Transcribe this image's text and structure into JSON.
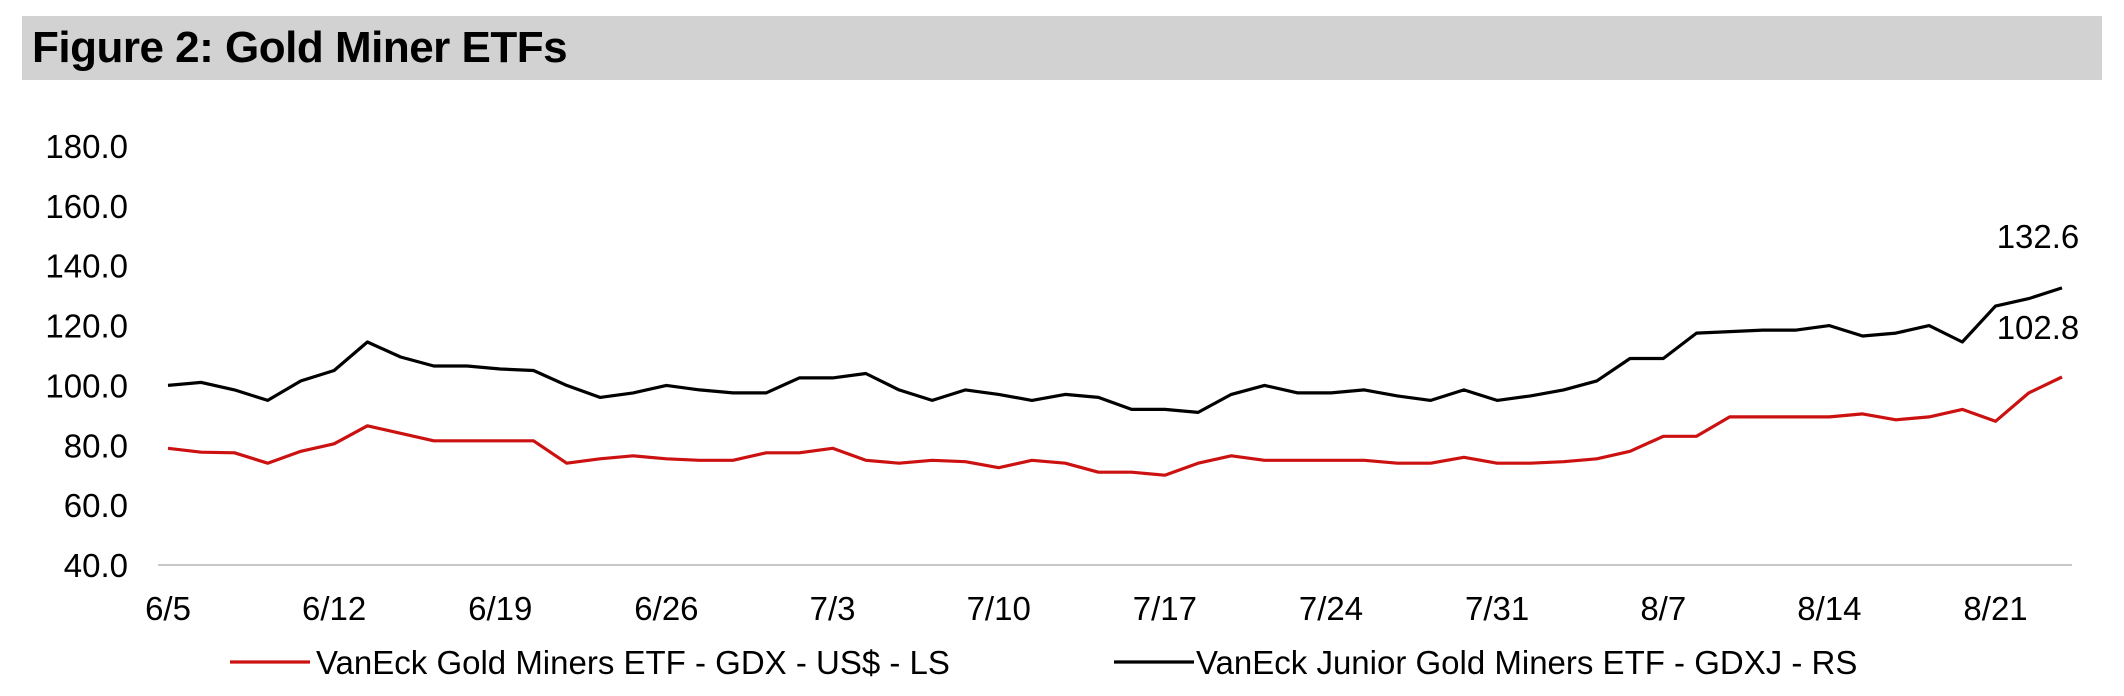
{
  "figure": {
    "title": "Figure 2: Gold Miner ETFs"
  },
  "chart_data": {
    "type": "line",
    "y_ticks": [
      "180.0",
      "160.0",
      "140.0",
      "120.0",
      "100.0",
      "80.0",
      "60.0",
      "40.0"
    ],
    "y_tick_values": [
      180,
      160,
      140,
      120,
      100,
      80,
      60,
      40
    ],
    "ylim": [
      40,
      180
    ],
    "x_tick_labels": [
      "6/5",
      "6/12",
      "6/19",
      "6/26",
      "7/3",
      "7/10",
      "7/17",
      "7/24",
      "7/31",
      "8/7",
      "8/14",
      "8/21"
    ],
    "x_tick_index": [
      0,
      5,
      10,
      15,
      20,
      25,
      30,
      35,
      40,
      45,
      50,
      55
    ],
    "grid": false,
    "legend_position": "bottom",
    "series": [
      {
        "name": "VanEck Gold Miners ETF   - GDX  - US$ - LS",
        "color": "#cc1111",
        "end_label": "102.8",
        "values": [
          79,
          77.7,
          77.5,
          74,
          78,
          80.5,
          86.5,
          84,
          81.5,
          81.5,
          81.5,
          81.5,
          74,
          75.5,
          76.5,
          75.5,
          75,
          75,
          77.5,
          77.5,
          79,
          75,
          74,
          75,
          74.5,
          72.5,
          75,
          74,
          71,
          71,
          70,
          74,
          76.5,
          75,
          75,
          75,
          75,
          74,
          74,
          76,
          74,
          74,
          74.5,
          75.5,
          78,
          83,
          83,
          89.5,
          89.5,
          89.5,
          89.5,
          90.5,
          88.5,
          89.5,
          92,
          88,
          97.5,
          102.8
        ]
      },
      {
        "name": "VanEck Junior Gold Miners ETF - GDXJ - RS",
        "color": "#000000",
        "end_label": "132.6",
        "values": [
          100,
          101,
          98.5,
          95,
          101.5,
          105,
          114.5,
          109.5,
          106.5,
          106.5,
          105.5,
          105,
          100,
          96,
          97.5,
          100,
          98.5,
          97.5,
          97.5,
          102.5,
          102.5,
          104,
          98.5,
          95,
          98.5,
          97,
          95,
          97,
          96,
          92,
          92,
          91,
          97,
          100,
          97.5,
          97.5,
          98.5,
          96.5,
          95,
          98.5,
          95,
          96.5,
          98.5,
          101.5,
          109,
          109,
          117.5,
          118,
          118.5,
          118.5,
          120,
          116.5,
          117.5,
          120,
          114.5,
          126.5,
          129,
          132.6
        ]
      }
    ]
  },
  "legend": {
    "items": [
      {
        "label": "VanEck Gold Miners ETF   - GDX  - US$ - LS",
        "color": "#cc1111"
      },
      {
        "label": "VanEck Junior Gold Miners ETF - GDXJ - RS",
        "color": "#000000"
      }
    ]
  }
}
